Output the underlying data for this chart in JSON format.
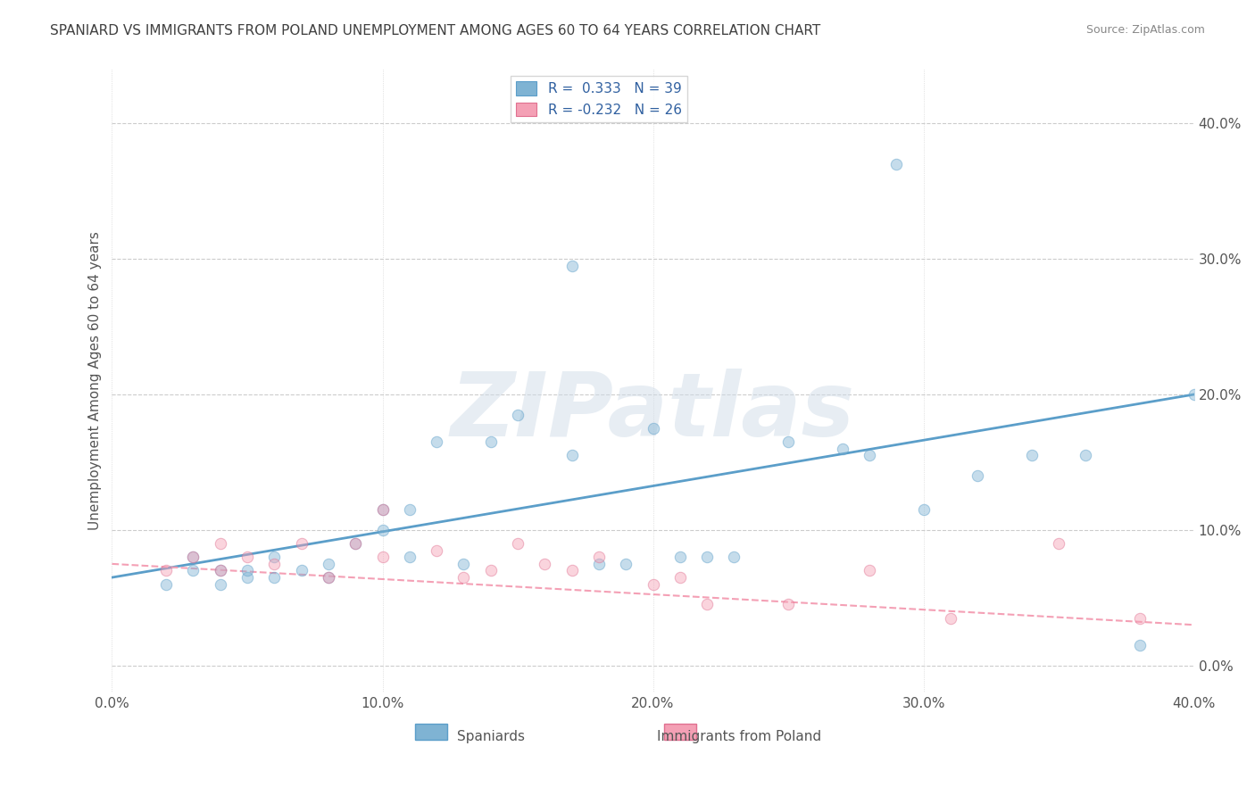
{
  "title": "SPANIARD VS IMMIGRANTS FROM POLAND UNEMPLOYMENT AMONG AGES 60 TO 64 YEARS CORRELATION CHART",
  "source": "Source: ZipAtlas.com",
  "xlabel": "",
  "ylabel": "Unemployment Among Ages 60 to 64 years",
  "xlim": [
    0.0,
    0.4
  ],
  "ylim": [
    -0.02,
    0.44
  ],
  "x_ticks": [
    0.0,
    0.1,
    0.2,
    0.3,
    0.4
  ],
  "x_tick_labels": [
    "0.0%",
    "10.0%",
    "20.0%",
    "30.0%",
    "40.0%"
  ],
  "y_ticks": [
    0.0,
    0.1,
    0.2,
    0.3,
    0.4
  ],
  "y_tick_labels": [
    "0.0%",
    "10.0%",
    "20.0%",
    "30.0%",
    "40.0%"
  ],
  "legend_entries": [
    {
      "label": "Spaniards",
      "color": "#a8c4e0",
      "R": 0.333,
      "N": 39
    },
    {
      "label": "Immigrants from Poland",
      "color": "#f4a7b9",
      "R": -0.232,
      "N": 26
    }
  ],
  "blue_scatter_x": [
    0.02,
    0.03,
    0.03,
    0.04,
    0.04,
    0.05,
    0.05,
    0.06,
    0.06,
    0.07,
    0.08,
    0.08,
    0.09,
    0.1,
    0.1,
    0.11,
    0.11,
    0.12,
    0.13,
    0.14,
    0.15,
    0.17,
    0.17,
    0.18,
    0.19,
    0.2,
    0.22,
    0.23,
    0.25,
    0.27,
    0.28,
    0.3,
    0.32,
    0.34,
    0.36,
    0.38,
    0.4,
    0.21,
    0.29
  ],
  "blue_scatter_y": [
    0.06,
    0.07,
    0.08,
    0.06,
    0.07,
    0.065,
    0.07,
    0.065,
    0.08,
    0.07,
    0.065,
    0.075,
    0.09,
    0.1,
    0.115,
    0.115,
    0.08,
    0.165,
    0.075,
    0.165,
    0.185,
    0.155,
    0.295,
    0.075,
    0.075,
    0.175,
    0.08,
    0.08,
    0.165,
    0.16,
    0.155,
    0.115,
    0.14,
    0.155,
    0.155,
    0.015,
    0.2,
    0.08,
    0.37
  ],
  "pink_scatter_x": [
    0.02,
    0.03,
    0.04,
    0.04,
    0.05,
    0.06,
    0.07,
    0.08,
    0.09,
    0.1,
    0.1,
    0.12,
    0.13,
    0.14,
    0.15,
    0.16,
    0.17,
    0.18,
    0.2,
    0.21,
    0.22,
    0.25,
    0.28,
    0.31,
    0.35,
    0.38
  ],
  "pink_scatter_y": [
    0.07,
    0.08,
    0.07,
    0.09,
    0.08,
    0.075,
    0.09,
    0.065,
    0.09,
    0.115,
    0.08,
    0.085,
    0.065,
    0.07,
    0.09,
    0.075,
    0.07,
    0.08,
    0.06,
    0.065,
    0.045,
    0.045,
    0.07,
    0.035,
    0.09,
    0.035
  ],
  "blue_line_x": [
    0.0,
    0.4
  ],
  "blue_line_y": [
    0.065,
    0.2
  ],
  "pink_line_x": [
    0.0,
    0.4
  ],
  "pink_line_y": [
    0.075,
    0.03
  ],
  "scatter_alpha": 0.45,
  "scatter_size": 80,
  "blue_color": "#7fb3d3",
  "pink_color": "#f4a0b5",
  "blue_line_color": "#5b9ec9",
  "pink_line_color": "#f4a0b5",
  "background_color": "#ffffff",
  "grid_color": "#cccccc",
  "title_color": "#404040",
  "watermark_text": "ZIPatlas",
  "watermark_color": "#d0dce8",
  "watermark_fontsize": 72
}
